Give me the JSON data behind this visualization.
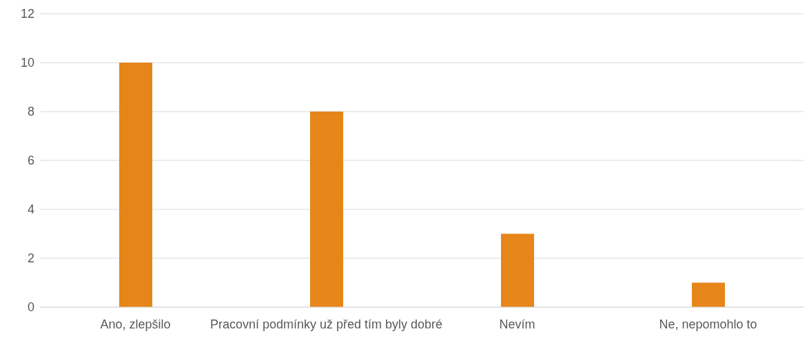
{
  "chart_data": {
    "type": "bar",
    "categories": [
      "Ano, zlepšilo",
      "Pracovní podmínky už před tím byly dobré",
      "Nevím",
      "Ne, nepomohlo to"
    ],
    "values": [
      10,
      8,
      3,
      1
    ],
    "color": "#e6851a",
    "ylim": [
      0,
      12
    ],
    "yticks": [
      0,
      2,
      4,
      6,
      8,
      10,
      12
    ],
    "grid": "y",
    "legend": false
  }
}
